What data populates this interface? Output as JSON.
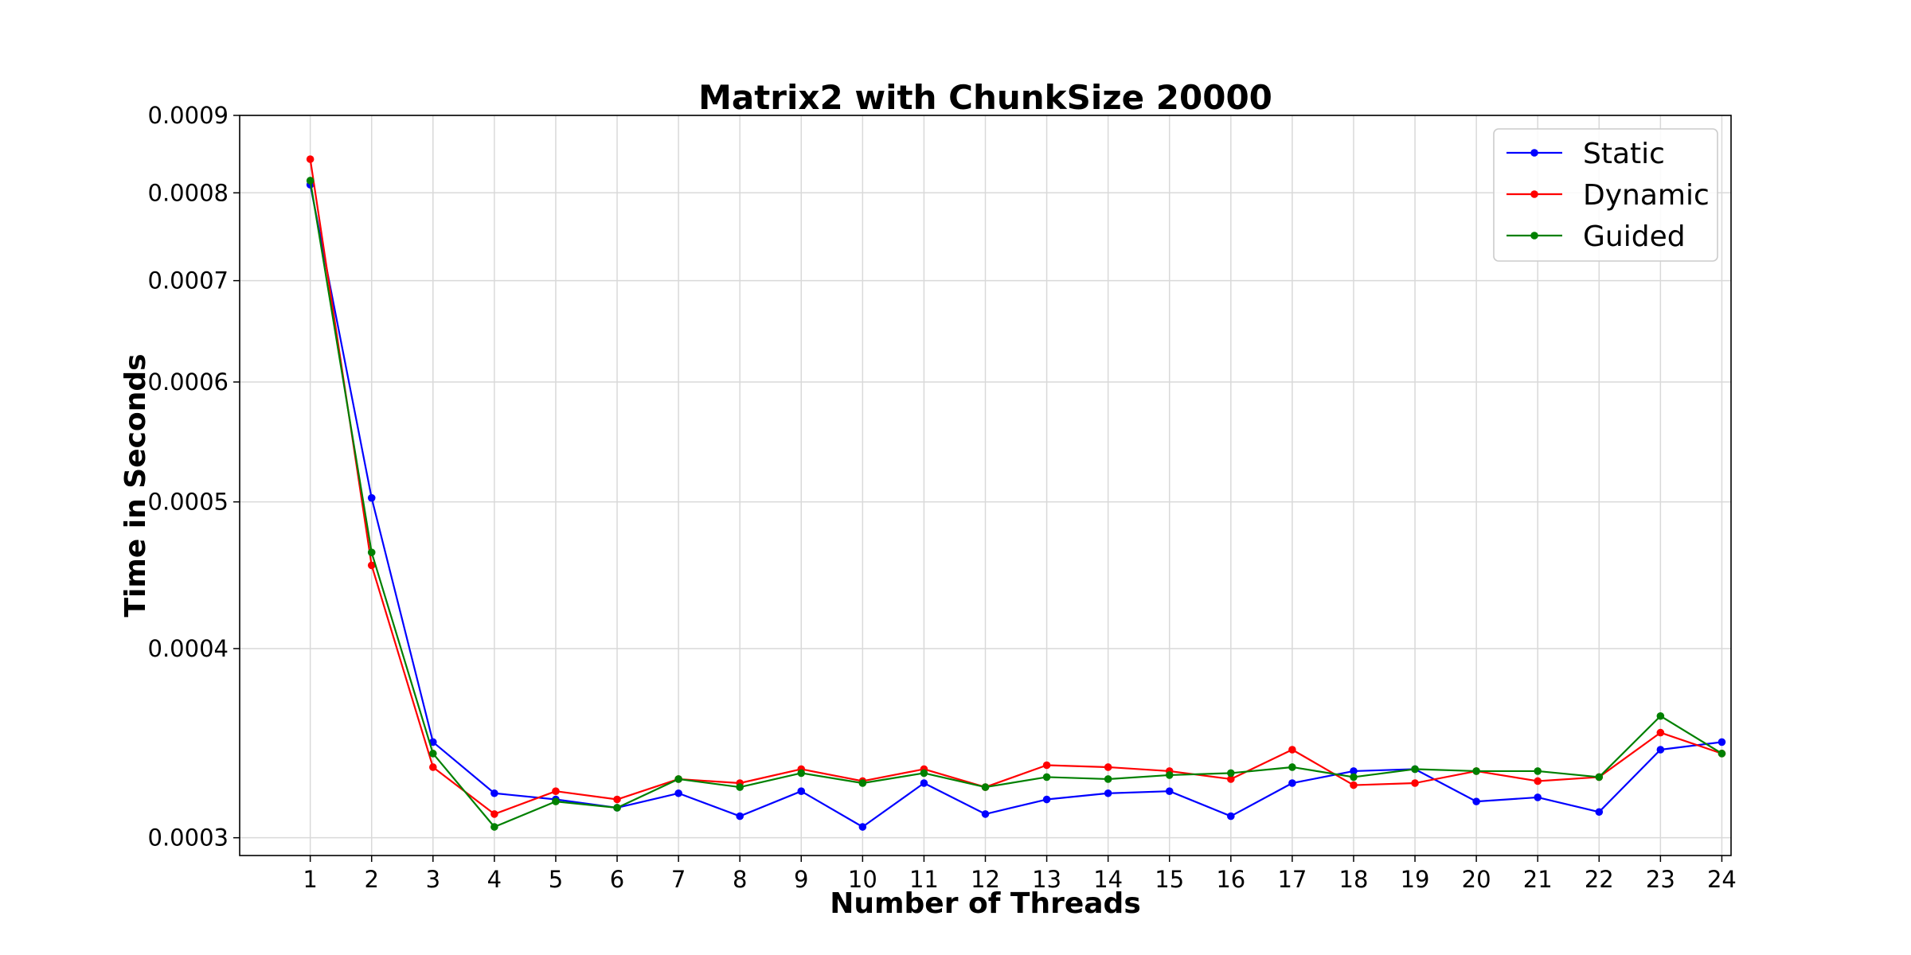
{
  "chart_data": {
    "type": "line",
    "title": "Matrix2 with ChunkSize 20000",
    "xlabel": "Number of Threads",
    "ylabel": "Time in Seconds",
    "y_scale": "log",
    "ylim": [
      0.000292,
      0.0009
    ],
    "xlim": [
      -0.15,
      24.15
    ],
    "x": [
      1,
      2,
      3,
      4,
      5,
      6,
      7,
      8,
      9,
      10,
      11,
      12,
      13,
      14,
      15,
      16,
      17,
      18,
      19,
      20,
      21,
      22,
      23,
      24
    ],
    "x_tick_labels": [
      "1",
      "2",
      "3",
      "4",
      "5",
      "6",
      "7",
      "8",
      "9",
      "10",
      "11",
      "12",
      "13",
      "14",
      "15",
      "16",
      "17",
      "18",
      "19",
      "20",
      "21",
      "22",
      "23",
      "24"
    ],
    "y_ticks": [
      0.0003,
      0.0004,
      0.0005,
      0.0006,
      0.0007,
      0.0008,
      0.0009
    ],
    "y_tick_labels": [
      "0.0003",
      "0.0004",
      "0.0005",
      "0.0006",
      "0.0007",
      "0.0008",
      "0.0009"
    ],
    "grid": true,
    "legend_position": "top-right",
    "series": [
      {
        "name": "Static",
        "color": "#0000ff",
        "values": [
          0.00081,
          0.000503,
          0.000347,
          0.000321,
          0.000318,
          0.000314,
          0.000321,
          0.00031,
          0.000322,
          0.000305,
          0.000326,
          0.000311,
          0.000318,
          0.000321,
          0.000322,
          0.00031,
          0.000326,
          0.000332,
          0.000333,
          0.000317,
          0.000319,
          0.000312,
          0.000343,
          0.000347
        ]
      },
      {
        "name": "Dynamic",
        "color": "#ff0000",
        "values": [
          0.000842,
          0.000454,
          0.000334,
          0.000311,
          0.000322,
          0.000318,
          0.000328,
          0.000326,
          0.000333,
          0.000327,
          0.000333,
          0.000324,
          0.000335,
          0.000334,
          0.000332,
          0.000328,
          0.000343,
          0.000325,
          0.000326,
          0.000332,
          0.000327,
          0.000329,
          0.000352,
          0.000341
        ]
      },
      {
        "name": "Guided",
        "color": "#008000",
        "values": [
          0.000815,
          0.000463,
          0.000341,
          0.000305,
          0.000317,
          0.000314,
          0.000328,
          0.000324,
          0.000331,
          0.000326,
          0.000331,
          0.000324,
          0.000329,
          0.000328,
          0.00033,
          0.000331,
          0.000334,
          0.000329,
          0.000333,
          0.000332,
          0.000332,
          0.000329,
          0.000361,
          0.000341
        ]
      }
    ]
  }
}
